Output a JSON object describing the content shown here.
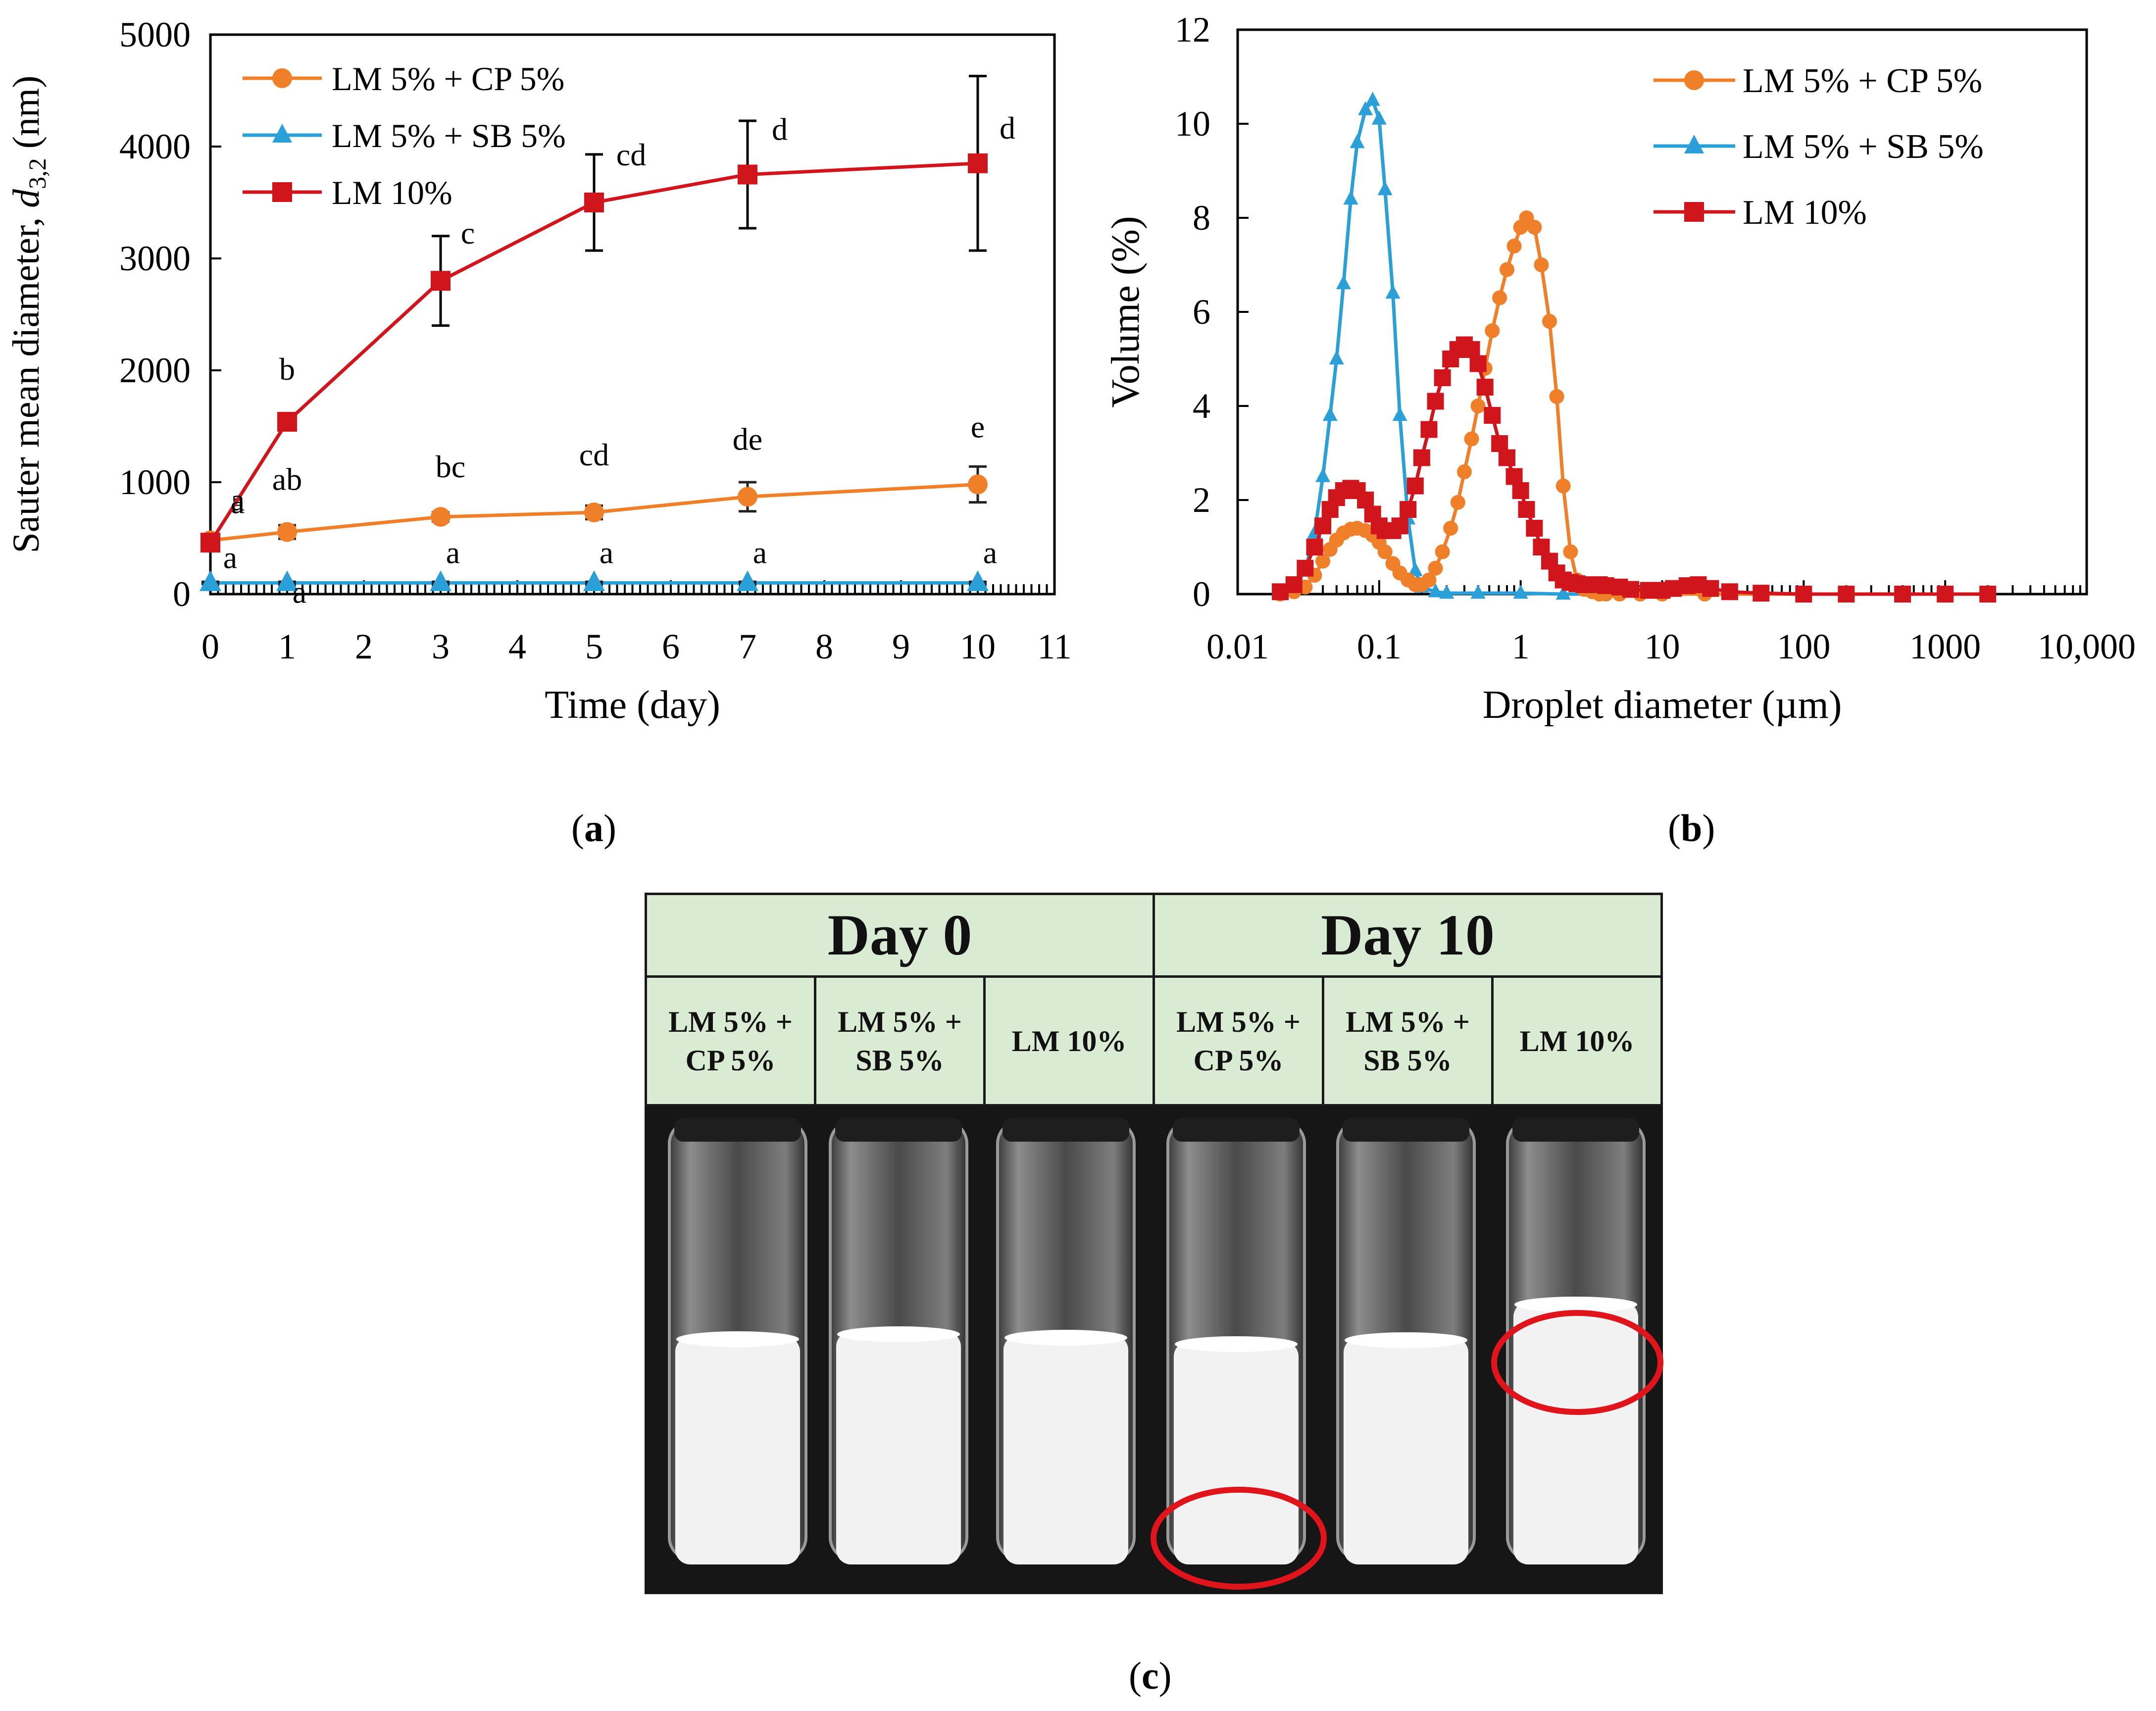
{
  "chart_data": [
    {
      "panel": "(a)",
      "type": "line",
      "xlabel": "Time (day)",
      "ylabel_main": "Sauter mean diameter, ",
      "ylabel_symbol": "d",
      "ylabel_sub": "3,2",
      "ylabel_unit": " (nm)",
      "xlim": [
        0,
        11
      ],
      "ylim": [
        0,
        5000
      ],
      "xticks": [
        0,
        1,
        2,
        3,
        4,
        5,
        6,
        7,
        8,
        9,
        10,
        11
      ],
      "yticks": [
        0,
        1000,
        2000,
        3000,
        4000,
        5000
      ],
      "series": [
        {
          "name": "LM 5% + CP 5%",
          "color": "#f07f29",
          "marker": "circle",
          "x": [
            0,
            1,
            3,
            5,
            7,
            10
          ],
          "values": [
            480,
            555,
            690,
            730,
            870,
            980
          ],
          "errors": [
            40,
            60,
            40,
            60,
            130,
            160
          ],
          "labels": [
            "a",
            "ab",
            "bc",
            "cd",
            "de",
            "e"
          ]
        },
        {
          "name": "LM 5% + SB 5%",
          "color": "#2a9fd8",
          "marker": "triangle",
          "x": [
            0,
            1,
            3,
            5,
            7,
            10
          ],
          "values": [
            100,
            100,
            100,
            100,
            100,
            100
          ],
          "errors": [
            10,
            10,
            10,
            10,
            10,
            10
          ],
          "labels": [
            "a",
            "a",
            "a",
            "a",
            "a",
            "a"
          ]
        },
        {
          "name": "LM 10%",
          "color": "#d0161c",
          "marker": "square",
          "x": [
            0,
            1,
            3,
            5,
            7,
            10
          ],
          "values": [
            460,
            1540,
            2800,
            3500,
            3750,
            3850
          ],
          "errors": [
            60,
            40,
            400,
            430,
            480,
            780
          ],
          "labels": [
            "a",
            "b",
            "c",
            "cd",
            "d",
            "d"
          ]
        }
      ]
    },
    {
      "panel": "(b)",
      "type": "line",
      "xscale": "log",
      "xlabel": "Droplet diameter (µm)",
      "ylabel": "Volume (%)",
      "xlim": [
        0.01,
        10000
      ],
      "ylim": [
        0,
        12
      ],
      "xtick_values": [
        0.01,
        0.1,
        1,
        10,
        100,
        1000,
        10000
      ],
      "xtick_labels": [
        "0.01",
        "0.1",
        "1",
        "10",
        "100",
        "1000",
        "10,000"
      ],
      "yticks": [
        0,
        2,
        4,
        6,
        8,
        10,
        12
      ],
      "series": [
        {
          "name": "LM 5% + CP 5%",
          "color": "#f07f29",
          "marker": "circle",
          "x": [
            0.02,
            0.025,
            0.03,
            0.035,
            0.04,
            0.045,
            0.05,
            0.056,
            0.063,
            0.07,
            0.08,
            0.09,
            0.1,
            0.11,
            0.125,
            0.14,
            0.16,
            0.18,
            0.2,
            0.225,
            0.25,
            0.28,
            0.32,
            0.36,
            0.4,
            0.45,
            0.5,
            0.56,
            0.63,
            0.71,
            0.8,
            0.9,
            1.0,
            1.1,
            1.25,
            1.4,
            1.6,
            1.8,
            2.0,
            2.25,
            2.5,
            2.8,
            3.2,
            3.6,
            4.0,
            5.0,
            7.0,
            10.0,
            20.0,
            50.0,
            100.0,
            500.0,
            2000.0
          ],
          "values": [
            0,
            0.05,
            0.15,
            0.4,
            0.7,
            0.95,
            1.15,
            1.3,
            1.38,
            1.4,
            1.35,
            1.25,
            1.1,
            0.9,
            0.65,
            0.45,
            0.3,
            0.2,
            0.2,
            0.3,
            0.55,
            0.9,
            1.4,
            1.95,
            2.6,
            3.3,
            4.0,
            4.8,
            5.6,
            6.3,
            6.9,
            7.4,
            7.8,
            8.0,
            7.8,
            7.0,
            5.8,
            4.2,
            2.3,
            0.9,
            0.3,
            0.1,
            0.05,
            0,
            0,
            0,
            0,
            0,
            0,
            0,
            0,
            0,
            0
          ]
        },
        {
          "name": "LM 5% + SB 5%",
          "color": "#2a9fd8",
          "marker": "triangle",
          "x": [
            0.02,
            0.025,
            0.03,
            0.035,
            0.04,
            0.045,
            0.05,
            0.056,
            0.063,
            0.07,
            0.08,
            0.09,
            0.1,
            0.11,
            0.125,
            0.14,
            0.16,
            0.18,
            0.2,
            0.25,
            0.3,
            0.5,
            1.0,
            2.0,
            2000.0
          ],
          "values": [
            0,
            0.15,
            0.5,
            1.3,
            2.5,
            3.8,
            5.0,
            6.6,
            8.4,
            9.6,
            10.3,
            10.5,
            10.1,
            8.6,
            6.4,
            3.8,
            1.6,
            0.5,
            0.15,
            0.05,
            0.02,
            0.02,
            0.02,
            0,
            0
          ]
        },
        {
          "name": "LM 10%",
          "color": "#d0161c",
          "marker": "square",
          "x": [
            0.02,
            0.025,
            0.03,
            0.035,
            0.04,
            0.045,
            0.05,
            0.056,
            0.063,
            0.07,
            0.08,
            0.09,
            0.1,
            0.11,
            0.125,
            0.14,
            0.16,
            0.18,
            0.2,
            0.225,
            0.25,
            0.28,
            0.32,
            0.36,
            0.4,
            0.45,
            0.5,
            0.56,
            0.63,
            0.71,
            0.8,
            0.9,
            1.0,
            1.1,
            1.25,
            1.4,
            1.6,
            1.8,
            2.0,
            2.25,
            2.5,
            2.8,
            3.2,
            3.6,
            4.0,
            5.0,
            6.0,
            8.0,
            10.0,
            12.0,
            15.0,
            18.0,
            22.0,
            30.0,
            50.0,
            100.0,
            200.0,
            500.0,
            1000.0,
            2000.0
          ],
          "values": [
            0.05,
            0.2,
            0.55,
            1.0,
            1.45,
            1.8,
            2.05,
            2.2,
            2.25,
            2.2,
            2.0,
            1.7,
            1.45,
            1.35,
            1.35,
            1.45,
            1.8,
            2.3,
            2.9,
            3.5,
            4.1,
            4.6,
            5.0,
            5.2,
            5.3,
            5.2,
            4.9,
            4.4,
            3.8,
            3.2,
            2.9,
            2.5,
            2.2,
            1.8,
            1.4,
            1.0,
            0.7,
            0.45,
            0.3,
            0.25,
            0.22,
            0.2,
            0.2,
            0.2,
            0.18,
            0.15,
            0.1,
            0.08,
            0.08,
            0.12,
            0.18,
            0.2,
            0.12,
            0.05,
            0.02,
            0,
            0,
            0,
            0,
            0
          ]
        }
      ]
    }
  ],
  "panel_c": {
    "label": "(c)",
    "headers": [
      "Day 0",
      "Day 10"
    ],
    "samples_line1": [
      "LM 5% +",
      "LM 5% +",
      "LM 10%",
      "LM 5% +",
      "LM 5% +",
      "LM 10%"
    ],
    "samples_line2": [
      "CP 5%",
      "SB 5%",
      "",
      "CP 5%",
      "SB 5%",
      ""
    ],
    "highlight_color": "#e0141b"
  }
}
